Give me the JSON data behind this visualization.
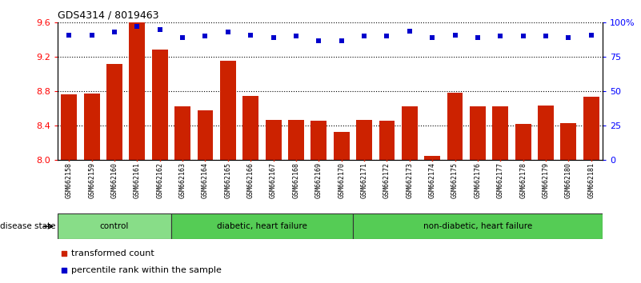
{
  "title": "GDS4314 / 8019463",
  "samples": [
    "GSM662158",
    "GSM662159",
    "GSM662160",
    "GSM662161",
    "GSM662162",
    "GSM662163",
    "GSM662164",
    "GSM662165",
    "GSM662166",
    "GSM662167",
    "GSM662168",
    "GSM662169",
    "GSM662170",
    "GSM662171",
    "GSM662172",
    "GSM662173",
    "GSM662174",
    "GSM662175",
    "GSM662176",
    "GSM662177",
    "GSM662178",
    "GSM662179",
    "GSM662180",
    "GSM662181"
  ],
  "bar_values": [
    8.76,
    8.77,
    9.12,
    9.6,
    9.29,
    8.62,
    8.58,
    9.16,
    8.75,
    8.47,
    8.47,
    8.46,
    8.33,
    8.47,
    8.46,
    8.62,
    8.05,
    8.78,
    8.62,
    8.62,
    8.42,
    8.63,
    8.43,
    8.74
  ],
  "percentile_values": [
    91,
    91,
    93,
    97,
    95,
    89,
    90,
    93,
    91,
    89,
    90,
    87,
    87,
    90,
    90,
    94,
    89,
    91,
    89,
    90,
    90,
    90,
    89,
    91
  ],
  "bar_color": "#cc2200",
  "percentile_color": "#0000cc",
  "ylim_left": [
    8.0,
    9.6
  ],
  "ylim_right": [
    0,
    100
  ],
  "yticks_left": [
    8.0,
    8.4,
    8.8,
    9.2,
    9.6
  ],
  "yticks_right": [
    0,
    25,
    50,
    75,
    100
  ],
  "ytick_labels_right": [
    "0",
    "25",
    "50",
    "75",
    "100%"
  ],
  "groups": [
    {
      "label": "control",
      "start": 0,
      "end": 4,
      "color": "#88dd88"
    },
    {
      "label": "diabetic, heart failure",
      "start": 5,
      "end": 12,
      "color": "#55cc55"
    },
    {
      "label": "non-diabetic, heart failure",
      "start": 13,
      "end": 23,
      "color": "#55cc55"
    }
  ],
  "disease_state_label": "disease state",
  "legend_bar_label": "transformed count",
  "legend_pct_label": "percentile rank within the sample",
  "tick_bg_color": "#c8c8c8",
  "plot_bg_color": "#ffffff",
  "group_border_color": "#333333"
}
